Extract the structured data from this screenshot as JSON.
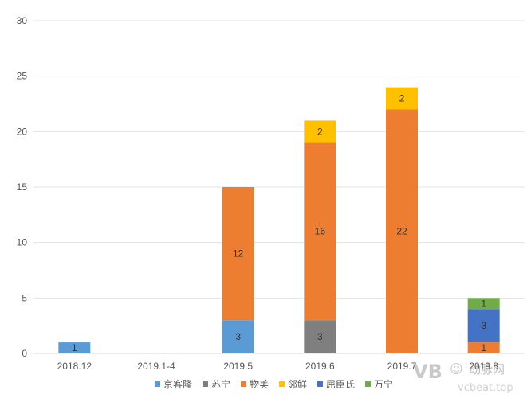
{
  "chart_data": {
    "type": "bar",
    "stacked": true,
    "title": "",
    "xlabel": "",
    "ylabel": "",
    "ylim": [
      0,
      30
    ],
    "yticks": [
      0,
      5,
      10,
      15,
      20,
      25,
      30
    ],
    "grid": true,
    "legend_position": "bottom",
    "categories": [
      "2018.12",
      "2019.1-4",
      "2019.5",
      "2019.6",
      "2019.7",
      "2019.8"
    ],
    "series": [
      {
        "name": "京客隆",
        "color": "#5b9bd5",
        "values": [
          1,
          0,
          3,
          0,
          0,
          0
        ]
      },
      {
        "name": "苏宁",
        "color": "#7f7f7f",
        "values": [
          0,
          0,
          0,
          3,
          0,
          0
        ]
      },
      {
        "name": "物美",
        "color": "#ed7d31",
        "values": [
          0,
          0,
          12,
          16,
          22,
          1
        ]
      },
      {
        "name": "邻鲜",
        "color": "#ffc000",
        "values": [
          0,
          0,
          0,
          2,
          2,
          0
        ]
      },
      {
        "name": "屈臣氏",
        "color": "#4472c4",
        "values": [
          0,
          0,
          0,
          0,
          0,
          3
        ]
      },
      {
        "name": "万宁",
        "color": "#70ad47",
        "values": [
          0,
          0,
          0,
          0,
          0,
          1
        ]
      }
    ]
  },
  "watermark": {
    "brand": "动脉网",
    "site": "vcbeat.top",
    "logo_text": "VB"
  }
}
